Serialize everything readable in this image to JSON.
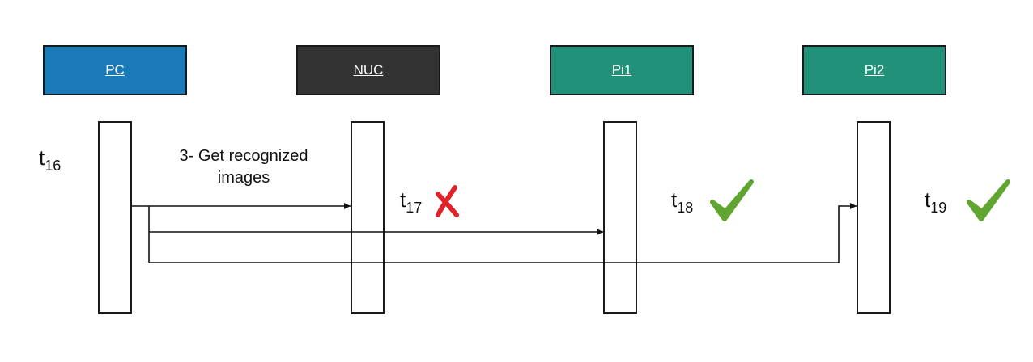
{
  "participants": [
    {
      "label": "PC",
      "color": "#1a7ab8"
    },
    {
      "label": "NUC",
      "color": "#333333"
    },
    {
      "label": "Pi1",
      "color": "#22917a"
    },
    {
      "label": "Pi2",
      "color": "#22917a"
    }
  ],
  "time_labels": [
    {
      "base": "t",
      "sub": "16"
    },
    {
      "base": "t",
      "sub": "17"
    },
    {
      "base": "t",
      "sub": "18"
    },
    {
      "base": "t",
      "sub": "19"
    }
  ],
  "message": {
    "label": "3- Get recognized images"
  },
  "status_icons": [
    {
      "icon": "cross-icon",
      "color": "#e0232a"
    },
    {
      "icon": "check-icon",
      "color": "#5fa52f"
    },
    {
      "icon": "check-icon",
      "color": "#5fa52f"
    }
  ]
}
